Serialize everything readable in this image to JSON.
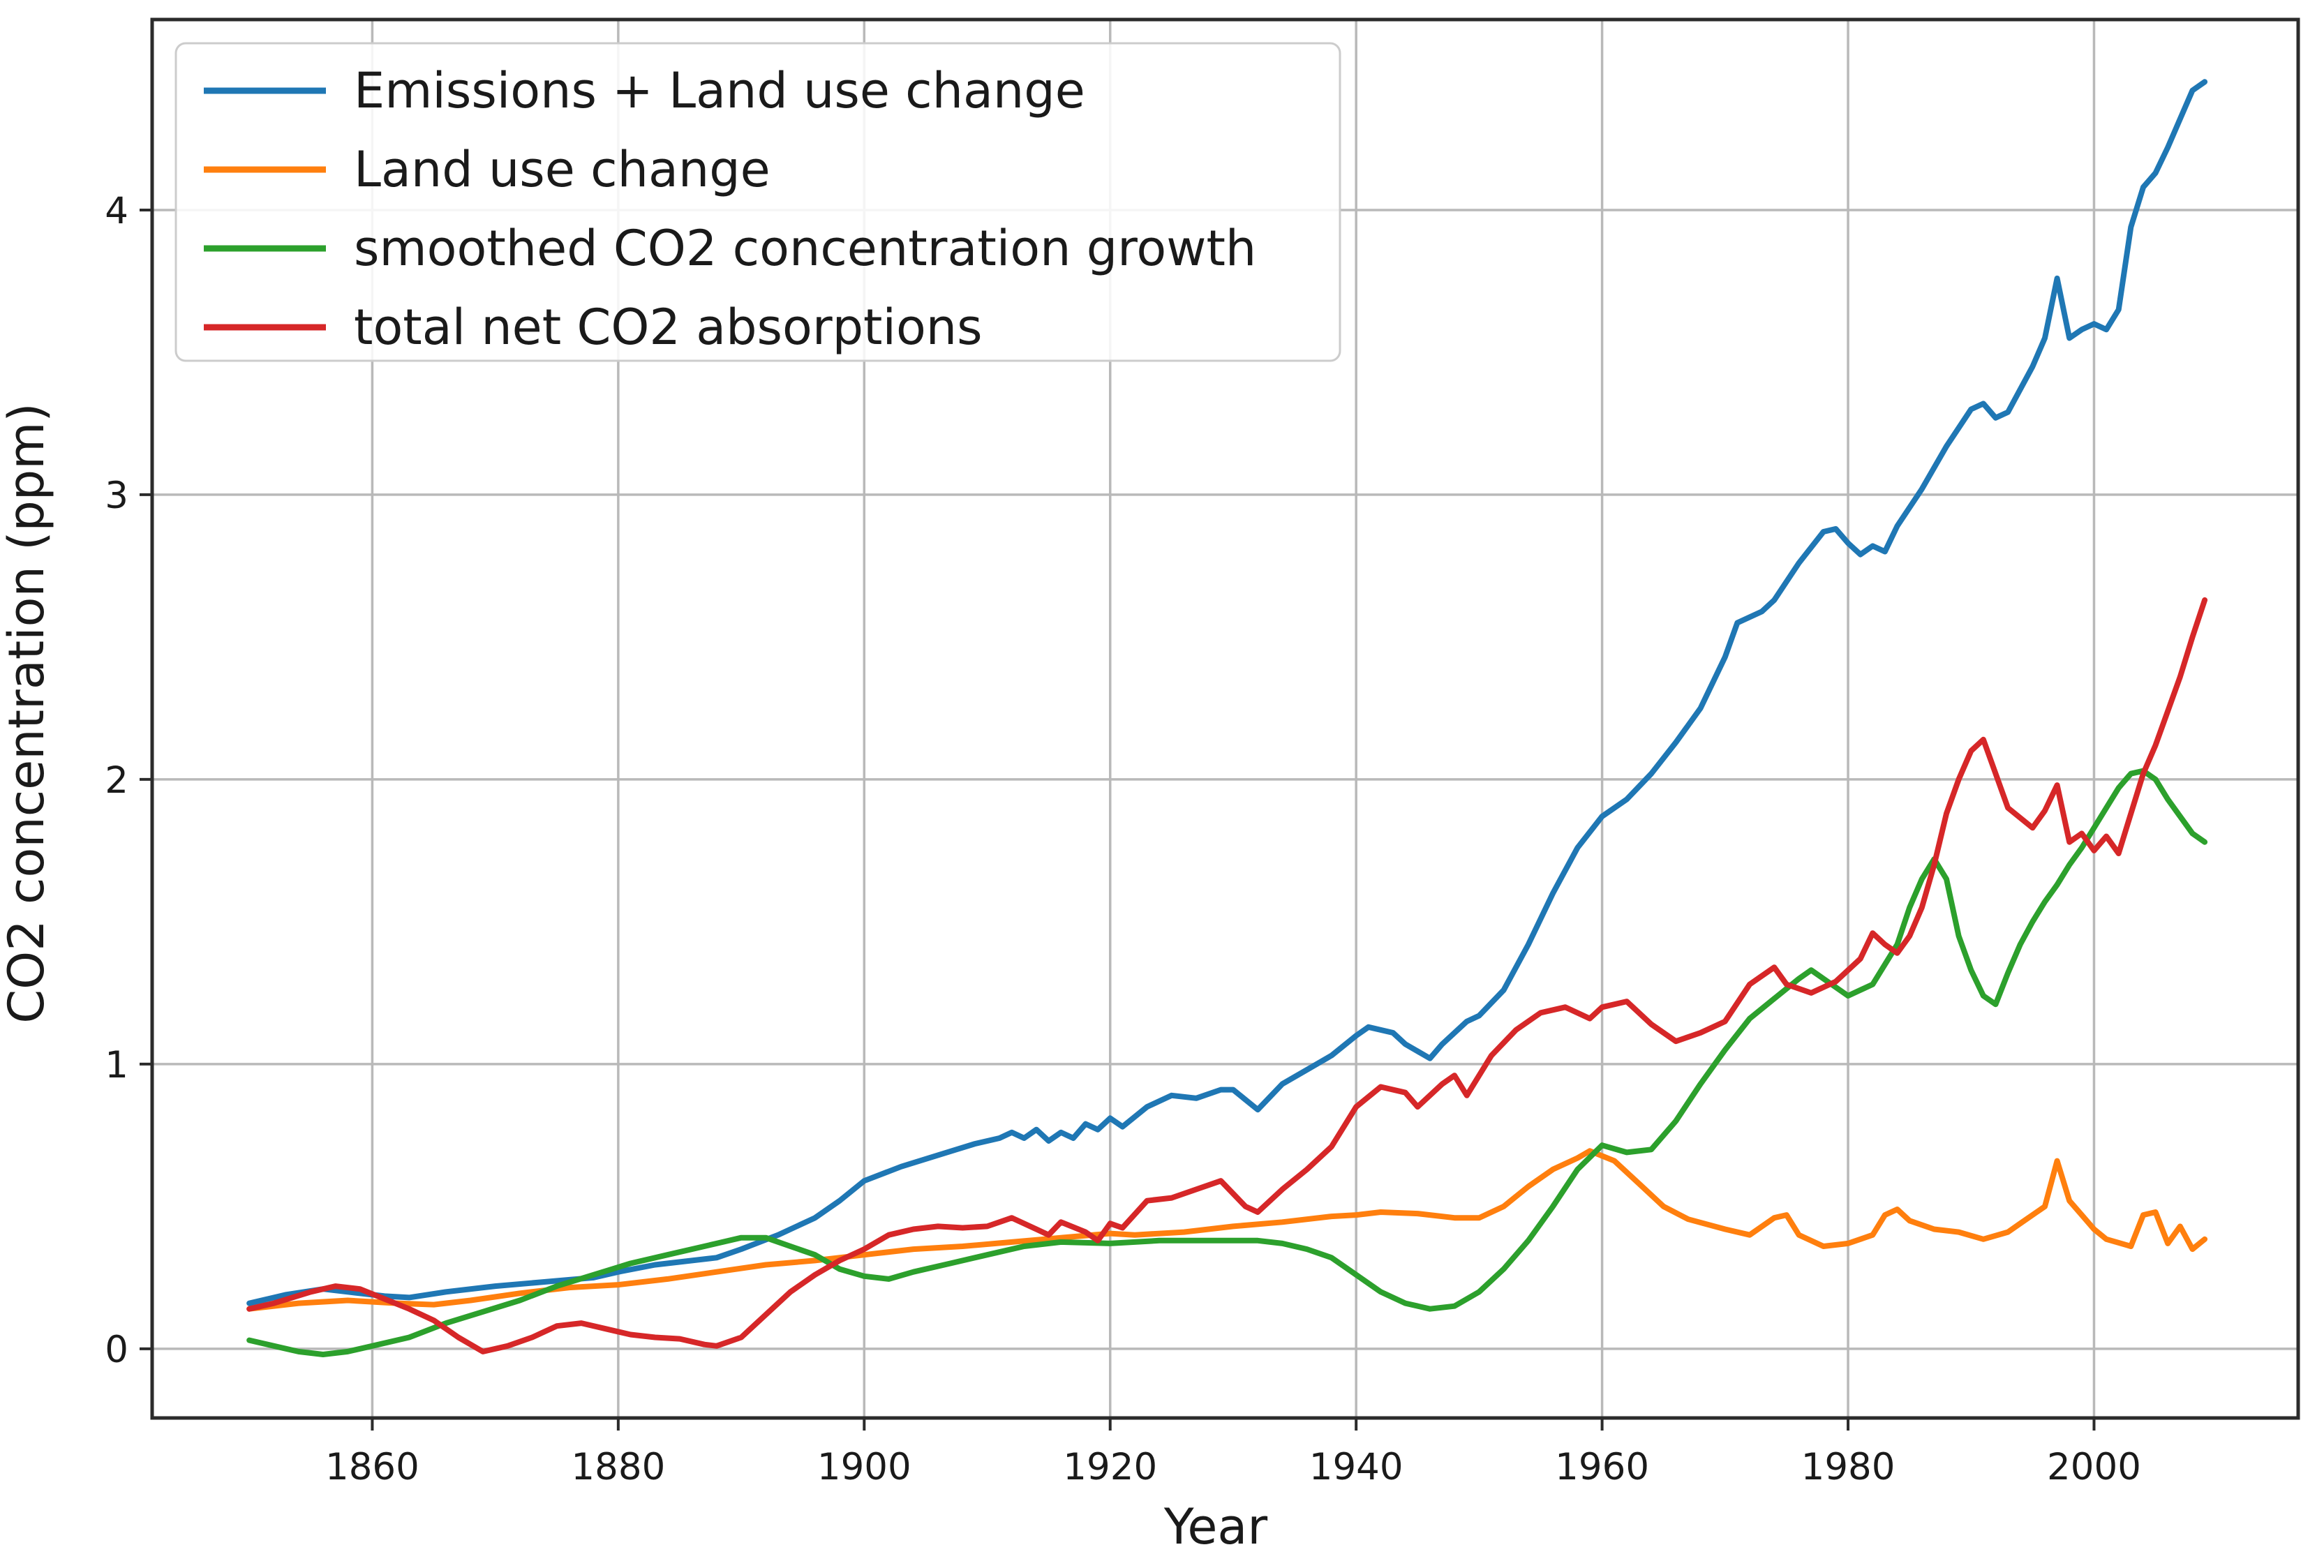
{
  "figure": {
    "background": "#ffffff",
    "grid_color": "#b9b9b9",
    "spine_color": "#2b2b2b",
    "text_color": "#1a1a1a",
    "legend_border_color": "#cccccc"
  },
  "chart_data": {
    "type": "line",
    "title": "",
    "xlabel": "Year",
    "ylabel": "CO2 concentration (ppm)",
    "x_ticks": [
      1860,
      1880,
      1900,
      1920,
      1940,
      1960,
      1980,
      2000
    ],
    "y_ticks": [
      0,
      1,
      2,
      3,
      4
    ],
    "xlim": [
      1842.1,
      2016.6
    ],
    "ylim": [
      -0.243,
      4.669
    ],
    "grid": true,
    "legend": {
      "position": "upper left",
      "entries": [
        "Emissions + Land use change",
        "Land use change",
        "smoothed CO2 concentration growth",
        "total net CO2 absorptions"
      ]
    },
    "series": [
      {
        "name": "Emissions + Land use change",
        "color": "#1f77b4",
        "x": [
          1850,
          1853,
          1856,
          1858,
          1861,
          1863,
          1866,
          1870,
          1874,
          1878,
          1880,
          1883,
          1886,
          1888,
          1890,
          1893,
          1896,
          1898,
          1900,
          1903,
          1906,
          1909,
          1911,
          1912,
          1913,
          1914,
          1915,
          1916,
          1917,
          1918,
          1919,
          1920,
          1921,
          1923,
          1925,
          1927,
          1929,
          1930,
          1932,
          1934,
          1936,
          1938,
          1940,
          1941,
          1943,
          1944,
          1946,
          1947,
          1949,
          1950,
          1952,
          1954,
          1956,
          1958,
          1960,
          1962,
          1964,
          1966,
          1968,
          1970,
          1971,
          1973,
          1974,
          1976,
          1978,
          1979,
          1980,
          1981,
          1982,
          1983,
          1984,
          1986,
          1988,
          1990,
          1991,
          1992,
          1993,
          1995,
          1996,
          1997,
          1998,
          1999,
          2000,
          2001,
          2002,
          2003,
          2004,
          2005,
          2006,
          2007,
          2008,
          2009
        ],
        "y": [
          0.16,
          0.19,
          0.21,
          0.2,
          0.185,
          0.18,
          0.2,
          0.22,
          0.235,
          0.25,
          0.27,
          0.295,
          0.31,
          0.32,
          0.35,
          0.4,
          0.46,
          0.52,
          0.59,
          0.64,
          0.68,
          0.72,
          0.74,
          0.76,
          0.74,
          0.77,
          0.73,
          0.76,
          0.74,
          0.79,
          0.77,
          0.81,
          0.78,
          0.85,
          0.89,
          0.88,
          0.91,
          0.91,
          0.84,
          0.93,
          0.98,
          1.03,
          1.1,
          1.13,
          1.11,
          1.07,
          1.02,
          1.07,
          1.15,
          1.17,
          1.26,
          1.42,
          1.6,
          1.76,
          1.87,
          1.93,
          2.02,
          2.13,
          2.25,
          2.43,
          2.55,
          2.59,
          2.63,
          2.76,
          2.87,
          2.88,
          2.83,
          2.79,
          2.82,
          2.8,
          2.89,
          3.02,
          3.17,
          3.3,
          3.32,
          3.27,
          3.29,
          3.45,
          3.55,
          3.76,
          3.55,
          3.58,
          3.6,
          3.58,
          3.65,
          3.94,
          4.08,
          4.13,
          4.22,
          4.32,
          4.42,
          4.45
        ]
      },
      {
        "name": "Land use change",
        "color": "#ff7f0e",
        "x": [
          1850,
          1854,
          1858,
          1862,
          1865,
          1868,
          1872,
          1876,
          1880,
          1884,
          1888,
          1892,
          1896,
          1900,
          1904,
          1908,
          1912,
          1916,
          1920,
          1922,
          1926,
          1930,
          1934,
          1938,
          1940,
          1942,
          1945,
          1948,
          1950,
          1952,
          1954,
          1956,
          1958,
          1959,
          1961,
          1963,
          1965,
          1967,
          1970,
          1972,
          1974,
          1975,
          1976,
          1978,
          1980,
          1982,
          1983,
          1984,
          1985,
          1987,
          1989,
          1991,
          1993,
          1994,
          1996,
          1997,
          1998,
          1999,
          2000,
          2001,
          2003,
          2004,
          2005,
          2006,
          2007,
          2008,
          2009
        ],
        "y": [
          0.14,
          0.16,
          0.17,
          0.16,
          0.155,
          0.17,
          0.195,
          0.215,
          0.225,
          0.245,
          0.27,
          0.295,
          0.31,
          0.33,
          0.35,
          0.36,
          0.375,
          0.39,
          0.405,
          0.4,
          0.41,
          0.43,
          0.445,
          0.465,
          0.47,
          0.48,
          0.475,
          0.46,
          0.46,
          0.5,
          0.57,
          0.63,
          0.67,
          0.695,
          0.66,
          0.58,
          0.5,
          0.455,
          0.42,
          0.4,
          0.46,
          0.47,
          0.4,
          0.36,
          0.37,
          0.4,
          0.47,
          0.49,
          0.45,
          0.42,
          0.41,
          0.385,
          0.41,
          0.44,
          0.5,
          0.66,
          0.52,
          0.47,
          0.42,
          0.385,
          0.36,
          0.47,
          0.48,
          0.37,
          0.43,
          0.35,
          0.385
        ]
      },
      {
        "name": "smoothed CO2 concentration growth",
        "color": "#2ca02c",
        "x": [
          1850,
          1852,
          1854,
          1856,
          1858,
          1860,
          1863,
          1866,
          1869,
          1872,
          1875,
          1878,
          1881,
          1884,
          1887,
          1890,
          1892,
          1894,
          1896,
          1898,
          1900,
          1902,
          1904,
          1907,
          1910,
          1913,
          1916,
          1920,
          1924,
          1928,
          1932,
          1934,
          1936,
          1938,
          1940,
          1942,
          1944,
          1946,
          1948,
          1950,
          1952,
          1954,
          1956,
          1958,
          1960,
          1962,
          1964,
          1966,
          1968,
          1970,
          1972,
          1974,
          1976,
          1977,
          1978,
          1980,
          1982,
          1984,
          1985,
          1986,
          1987,
          1988,
          1989,
          1990,
          1991,
          1992,
          1993,
          1994,
          1995,
          1996,
          1997,
          1998,
          1999,
          2000,
          2001,
          2002,
          2003,
          2004,
          2005,
          2006,
          2007,
          2008,
          2009
        ],
        "y": [
          0.03,
          0.01,
          -0.01,
          -0.02,
          -0.01,
          0.01,
          0.04,
          0.09,
          0.13,
          0.17,
          0.22,
          0.26,
          0.3,
          0.33,
          0.36,
          0.39,
          0.39,
          0.36,
          0.33,
          0.28,
          0.255,
          0.245,
          0.27,
          0.3,
          0.33,
          0.36,
          0.375,
          0.37,
          0.38,
          0.38,
          0.38,
          0.37,
          0.35,
          0.32,
          0.26,
          0.2,
          0.16,
          0.14,
          0.15,
          0.2,
          0.28,
          0.38,
          0.5,
          0.63,
          0.715,
          0.69,
          0.7,
          0.8,
          0.93,
          1.05,
          1.16,
          1.23,
          1.3,
          1.33,
          1.3,
          1.24,
          1.28,
          1.42,
          1.55,
          1.65,
          1.72,
          1.65,
          1.45,
          1.33,
          1.24,
          1.21,
          1.32,
          1.42,
          1.5,
          1.57,
          1.63,
          1.7,
          1.76,
          1.83,
          1.9,
          1.97,
          2.02,
          2.03,
          2.0,
          1.93,
          1.87,
          1.81,
          1.78
        ]
      },
      {
        "name": "total net CO2 absorptions",
        "color": "#d62728",
        "x": [
          1850,
          1852,
          1855,
          1857,
          1859,
          1861,
          1863,
          1865,
          1867,
          1869,
          1871,
          1873,
          1875,
          1877,
          1879,
          1881,
          1883,
          1885,
          1887,
          1888,
          1890,
          1892,
          1894,
          1896,
          1898,
          1900,
          1902,
          1904,
          1906,
          1908,
          1910,
          1912,
          1914,
          1915,
          1916,
          1918,
          1919,
          1920,
          1921,
          1923,
          1925,
          1927,
          1929,
          1931,
          1932,
          1934,
          1936,
          1938,
          1940,
          1942,
          1944,
          1945,
          1947,
          1948,
          1949,
          1951,
          1953,
          1955,
          1957,
          1959,
          1960,
          1962,
          1964,
          1966,
          1968,
          1970,
          1972,
          1974,
          1975,
          1977,
          1979,
          1981,
          1982,
          1983,
          1984,
          1985,
          1986,
          1987,
          1988,
          1989,
          1990,
          1991,
          1992,
          1993,
          1995,
          1996,
          1997,
          1998,
          1999,
          2000,
          2001,
          2002,
          2003,
          2004,
          2005,
          2006,
          2007,
          2008,
          2009
        ],
        "y": [
          0.14,
          0.16,
          0.2,
          0.22,
          0.21,
          0.175,
          0.14,
          0.1,
          0.04,
          -0.01,
          0.01,
          0.04,
          0.08,
          0.09,
          0.07,
          0.05,
          0.04,
          0.035,
          0.015,
          0.01,
          0.04,
          0.12,
          0.2,
          0.26,
          0.31,
          0.35,
          0.4,
          0.42,
          0.43,
          0.425,
          0.43,
          0.46,
          0.42,
          0.4,
          0.445,
          0.41,
          0.38,
          0.44,
          0.425,
          0.52,
          0.53,
          0.56,
          0.59,
          0.5,
          0.48,
          0.56,
          0.63,
          0.71,
          0.85,
          0.92,
          0.9,
          0.85,
          0.93,
          0.96,
          0.89,
          1.03,
          1.12,
          1.18,
          1.2,
          1.16,
          1.2,
          1.22,
          1.14,
          1.08,
          1.11,
          1.15,
          1.28,
          1.34,
          1.28,
          1.25,
          1.29,
          1.37,
          1.46,
          1.42,
          1.39,
          1.45,
          1.55,
          1.7,
          1.88,
          2.0,
          2.1,
          2.14,
          2.02,
          1.9,
          1.83,
          1.89,
          1.98,
          1.78,
          1.81,
          1.75,
          1.8,
          1.74,
          1.88,
          2.02,
          2.12,
          2.24,
          2.36,
          2.5,
          2.63
        ]
      }
    ]
  }
}
